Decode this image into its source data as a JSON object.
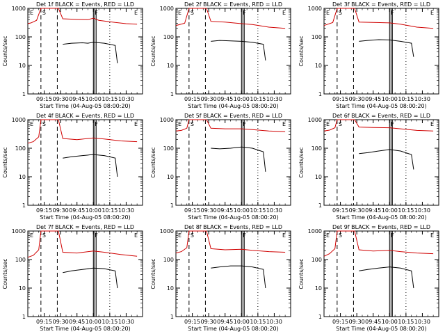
{
  "chart_data": [
    {
      "type": "line",
      "title": "Det 1f BLACK = Events, RED = LLD",
      "xlabel": "Start Time (04-Aug-05 08:00:20)",
      "ylabel": "Counts/sec",
      "yscale": "log",
      "ylim": [
        1,
        1000
      ],
      "xlim": [
        "09:00",
        "10:45"
      ],
      "x_ticks": [
        "09:15",
        "09:30",
        "09:45",
        "10:00",
        "10:15",
        "10:30"
      ],
      "y_ticks": [
        "1",
        "10",
        "100",
        "1000"
      ],
      "markers": [
        "E",
        "S",
        "F",
        "E"
      ],
      "series": [
        {
          "name": "LLD",
          "color": "#d00000",
          "x": [
            "09:00",
            "09:03",
            "09:08",
            "09:12",
            "09:28",
            "09:32",
            "09:45",
            "09:55",
            "10:00",
            "10:05",
            "10:20",
            "10:30",
            "10:40"
          ],
          "values": [
            290,
            310,
            380,
            1000,
            1000,
            430,
            410,
            400,
            450,
            380,
            320,
            290,
            280
          ]
        },
        {
          "name": "Events",
          "color": "#000000",
          "x": [
            "09:32",
            "09:40",
            "09:50",
            "09:55",
            "10:00",
            "10:10",
            "10:20",
            "10:22"
          ],
          "values": [
            55,
            60,
            62,
            60,
            65,
            60,
            50,
            12
          ]
        }
      ]
    },
    {
      "type": "line",
      "title": "Det 2f BLACK = Events, RED = LLD",
      "xlabel": "Start Time (04-Aug-05 08:00:20)",
      "ylabel": "Counts/sec",
      "yscale": "log",
      "ylim": [
        1,
        1000
      ],
      "xlim": [
        "09:00",
        "10:45"
      ],
      "x_ticks": [
        "09:15",
        "09:30",
        "09:45",
        "10:00",
        "10:15",
        "10:30"
      ],
      "y_ticks": [
        "1",
        "10",
        "100",
        "1000"
      ],
      "markers": [
        "E",
        "S",
        "F",
        "E"
      ],
      "series": [
        {
          "name": "LLD",
          "color": "#d00000",
          "x": [
            "09:00",
            "09:08",
            "09:12",
            "09:28",
            "09:32",
            "09:45",
            "10:00",
            "10:10",
            "10:25",
            "10:40"
          ],
          "values": [
            250,
            300,
            1000,
            1000,
            350,
            330,
            290,
            270,
            220,
            200
          ]
        },
        {
          "name": "Events",
          "color": "#000000",
          "x": [
            "09:32",
            "09:40",
            "09:50",
            "10:00",
            "10:10",
            "10:20",
            "10:22"
          ],
          "values": [
            70,
            75,
            72,
            70,
            65,
            55,
            15
          ]
        }
      ]
    },
    {
      "type": "line",
      "title": "Det 3f BLACK = Events, RED = LLD",
      "xlabel": "Start Time (04-Aug-05 08:00:20)",
      "ylabel": "Counts/sec",
      "yscale": "log",
      "ylim": [
        1,
        1000
      ],
      "xlim": [
        "09:00",
        "10:45"
      ],
      "x_ticks": [
        "09:15",
        "09:30",
        "09:45",
        "10:00",
        "10:15",
        "10:30"
      ],
      "y_ticks": [
        "1",
        "10",
        "100",
        "1000"
      ],
      "markers": [
        "E",
        "S",
        "F",
        "E"
      ],
      "series": [
        {
          "name": "LLD",
          "color": "#d00000",
          "x": [
            "09:00",
            "09:08",
            "09:12",
            "09:28",
            "09:32",
            "09:45",
            "10:00",
            "10:10",
            "10:25",
            "10:40"
          ],
          "values": [
            250,
            320,
            1000,
            1000,
            330,
            320,
            310,
            280,
            220,
            200
          ]
        },
        {
          "name": "Events",
          "color": "#000000",
          "x": [
            "09:32",
            "09:40",
            "09:50",
            "10:00",
            "10:10",
            "10:20",
            "10:22"
          ],
          "values": [
            70,
            75,
            80,
            78,
            70,
            60,
            20
          ]
        }
      ]
    },
    {
      "type": "line",
      "title": "Det 4f BLACK = Events, RED = LLD",
      "xlabel": "Start Time (04-Aug-05 08:00:20)",
      "ylabel": "Counts/sec",
      "yscale": "log",
      "ylim": [
        1,
        1000
      ],
      "xlim": [
        "09:00",
        "10:45"
      ],
      "x_ticks": [
        "09:15",
        "09:30",
        "09:45",
        "10:00",
        "10:15",
        "10:30"
      ],
      "y_ticks": [
        "1",
        "10",
        "100",
        "1000"
      ],
      "markers": [
        "E",
        "S",
        "F",
        "E"
      ],
      "series": [
        {
          "name": "LLD",
          "color": "#d00000",
          "x": [
            "09:00",
            "09:05",
            "09:10",
            "09:12",
            "09:28",
            "09:32",
            "09:45",
            "10:00",
            "10:10",
            "10:25",
            "10:40"
          ],
          "values": [
            150,
            170,
            250,
            1000,
            1000,
            220,
            200,
            230,
            210,
            180,
            170
          ]
        },
        {
          "name": "Events",
          "color": "#000000",
          "x": [
            "09:32",
            "09:40",
            "09:50",
            "10:00",
            "10:10",
            "10:20",
            "10:22"
          ],
          "values": [
            45,
            50,
            55,
            60,
            55,
            45,
            10
          ]
        }
      ]
    },
    {
      "type": "line",
      "title": "Det 5f BLACK = Events, RED = LLD",
      "xlabel": "Start Time (04-Aug-05 08:00:20)",
      "ylabel": "Counts/sec",
      "yscale": "log",
      "ylim": [
        1,
        1000
      ],
      "xlim": [
        "09:00",
        "10:45"
      ],
      "x_ticks": [
        "09:15",
        "09:30",
        "09:45",
        "10:00",
        "10:15",
        "10:30"
      ],
      "y_ticks": [
        "1",
        "10",
        "100",
        "1000"
      ],
      "markers": [
        "E",
        "S",
        "F",
        "E"
      ],
      "series": [
        {
          "name": "LLD",
          "color": "#d00000",
          "x": [
            "09:00",
            "09:05",
            "09:10",
            "09:12",
            "09:28",
            "09:32",
            "09:45",
            "10:00",
            "10:10",
            "10:25",
            "10:40"
          ],
          "values": [
            400,
            420,
            500,
            1000,
            1000,
            500,
            480,
            480,
            450,
            400,
            380
          ]
        },
        {
          "name": "Events",
          "color": "#000000",
          "x": [
            "09:32",
            "09:40",
            "09:50",
            "10:00",
            "10:10",
            "10:20",
            "10:22"
          ],
          "values": [
            100,
            95,
            100,
            110,
            100,
            75,
            15
          ]
        }
      ]
    },
    {
      "type": "line",
      "title": "Det 6f BLACK = Events, RED = LLD",
      "xlabel": "Start Time (04-Aug-05 08:00:20)",
      "ylabel": "Counts/sec",
      "yscale": "log",
      "ylim": [
        1,
        1000
      ],
      "xlim": [
        "09:00",
        "10:45"
      ],
      "x_ticks": [
        "09:15",
        "09:30",
        "09:45",
        "10:00",
        "10:15",
        "10:30"
      ],
      "y_ticks": [
        "1",
        "10",
        "100",
        "1000"
      ],
      "markers": [
        "E",
        "S",
        "F",
        "E"
      ],
      "series": [
        {
          "name": "LLD",
          "color": "#d00000",
          "x": [
            "09:00",
            "09:05",
            "09:10",
            "09:12",
            "09:28",
            "09:32",
            "09:45",
            "10:00",
            "10:10",
            "10:25",
            "10:40"
          ],
          "values": [
            400,
            430,
            520,
            1000,
            1000,
            550,
            530,
            520,
            480,
            420,
            400
          ]
        },
        {
          "name": "Events",
          "color": "#000000",
          "x": [
            "09:32",
            "09:40",
            "09:50",
            "10:00",
            "10:10",
            "10:20",
            "10:22"
          ],
          "values": [
            65,
            70,
            80,
            90,
            80,
            60,
            18
          ]
        }
      ]
    },
    {
      "type": "line",
      "title": "Det 7f BLACK = Events, RED = LLD",
      "xlabel": "Start Time (04-Aug-05 08:00:20)",
      "ylabel": "Counts/sec",
      "yscale": "log",
      "ylim": [
        1,
        1000
      ],
      "xlim": [
        "09:00",
        "10:45"
      ],
      "x_ticks": [
        "09:15",
        "09:30",
        "09:45",
        "10:00",
        "10:15",
        "10:30"
      ],
      "y_ticks": [
        "1",
        "10",
        "100",
        "1000"
      ],
      "markers": [
        "E",
        "S",
        "F",
        "E"
      ],
      "series": [
        {
          "name": "LLD",
          "color": "#d00000",
          "x": [
            "09:00",
            "09:05",
            "09:10",
            "09:12",
            "09:28",
            "09:32",
            "09:45",
            "10:00",
            "10:10",
            "10:25",
            "10:40"
          ],
          "values": [
            120,
            140,
            220,
            1000,
            1000,
            180,
            170,
            200,
            180,
            150,
            130
          ]
        },
        {
          "name": "Events",
          "color": "#000000",
          "x": [
            "09:32",
            "09:40",
            "09:50",
            "10:00",
            "10:10",
            "10:20",
            "10:22"
          ],
          "values": [
            35,
            40,
            45,
            50,
            48,
            40,
            10
          ]
        }
      ]
    },
    {
      "type": "line",
      "title": "Det 8f BLACK = Events, RED = LLD",
      "xlabel": "Start Time (04-Aug-05 08:00:20)",
      "ylabel": "Counts/sec",
      "yscale": "log",
      "ylim": [
        1,
        1000
      ],
      "xlim": [
        "09:00",
        "10:45"
      ],
      "x_ticks": [
        "09:15",
        "09:30",
        "09:45",
        "10:00",
        "10:15",
        "10:30"
      ],
      "y_ticks": [
        "1",
        "10",
        "100",
        "1000"
      ],
      "markers": [
        "E",
        "S",
        "F",
        "E"
      ],
      "series": [
        {
          "name": "LLD",
          "color": "#d00000",
          "x": [
            "09:00",
            "09:05",
            "09:10",
            "09:12",
            "09:28",
            "09:32",
            "09:45",
            "10:00",
            "10:10",
            "10:25",
            "10:40"
          ],
          "values": [
            170,
            190,
            260,
            1000,
            1000,
            240,
            220,
            230,
            210,
            190,
            180
          ]
        },
        {
          "name": "Events",
          "color": "#000000",
          "x": [
            "09:32",
            "09:40",
            "09:50",
            "10:00",
            "10:10",
            "10:20",
            "10:22"
          ],
          "values": [
            50,
            55,
            60,
            60,
            55,
            45,
            10
          ]
        }
      ]
    },
    {
      "type": "line",
      "title": "Det 9f BLACK = Events, RED = LLD",
      "xlabel": "Start Time (04-Aug-05 08:00:20)",
      "ylabel": "Counts/sec",
      "yscale": "log",
      "ylim": [
        1,
        1000
      ],
      "xlim": [
        "09:00",
        "10:45"
      ],
      "x_ticks": [
        "09:15",
        "09:30",
        "09:45",
        "10:00",
        "10:15",
        "10:30"
      ],
      "y_ticks": [
        "1",
        "10",
        "100",
        "1000"
      ],
      "markers": [
        "E",
        "S",
        "F",
        "E"
      ],
      "series": [
        {
          "name": "LLD",
          "color": "#d00000",
          "x": [
            "09:00",
            "09:05",
            "09:10",
            "09:12",
            "09:28",
            "09:32",
            "09:45",
            "10:00",
            "10:10",
            "10:25",
            "10:40"
          ],
          "values": [
            130,
            160,
            240,
            1000,
            1000,
            220,
            200,
            210,
            190,
            170,
            160
          ]
        },
        {
          "name": "Events",
          "color": "#000000",
          "x": [
            "09:32",
            "09:40",
            "09:50",
            "10:00",
            "10:10",
            "10:20",
            "10:22"
          ],
          "values": [
            40,
            45,
            50,
            55,
            50,
            40,
            10
          ]
        }
      ]
    }
  ]
}
